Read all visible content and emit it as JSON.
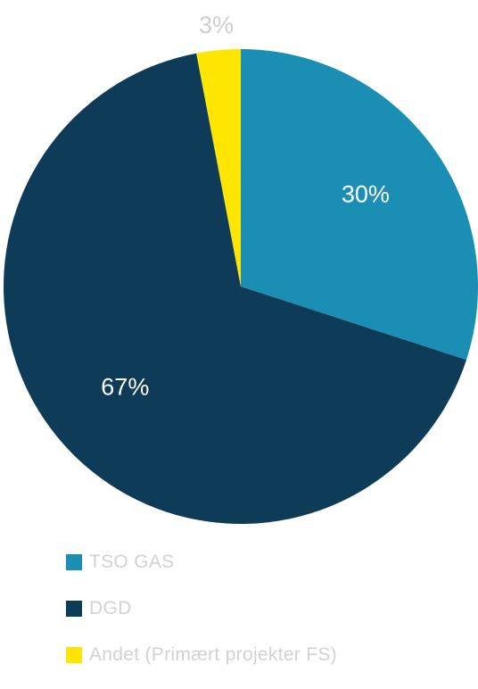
{
  "chart_data": {
    "type": "pie",
    "categories": [
      "TSO GAS",
      "DGD",
      "Andet (Primært projekter FS)"
    ],
    "values": [
      30,
      67,
      3
    ],
    "value_labels": [
      "30%",
      "67%",
      "3%"
    ],
    "colors": [
      "#1b8fb3",
      "#0e3b57",
      "#ffe600"
    ],
    "label_colors": [
      "#ffffff",
      "#ffffff",
      "#cfcfcf"
    ],
    "legend_position": "bottom",
    "start_angle_deg": 0,
    "direction": "clockwise"
  }
}
